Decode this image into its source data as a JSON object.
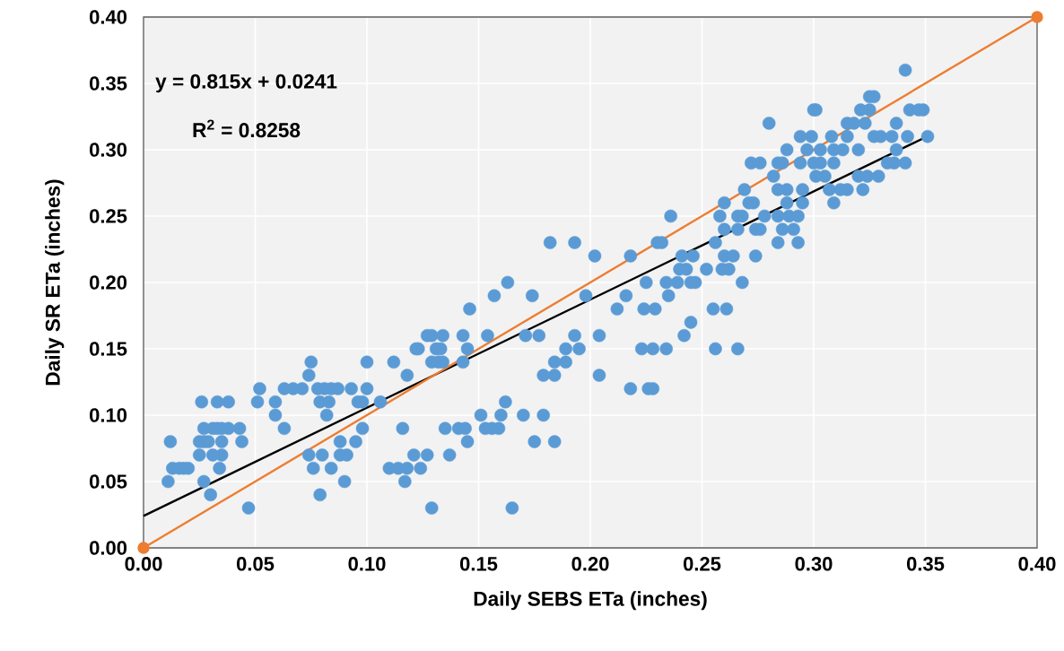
{
  "chart_data": {
    "type": "scatter",
    "xlabel": "Daily SEBS ETa (inches)",
    "ylabel": "Daily SR ETa (inches)",
    "annotations": [
      "y = 0.815x + 0.0241",
      "R$^{2}$ = 0.8258"
    ],
    "xlim": [
      0,
      0.4
    ],
    "ylim": [
      0,
      0.4
    ],
    "xticks": [
      {
        "value": 0,
        "label": "0.00"
      },
      0.05,
      {
        "value": 0.1,
        "label": "0.10"
      },
      0.15,
      {
        "value": 0.2,
        "label": "0.20"
      },
      0.25,
      {
        "value": 0.3,
        "label": "0.30"
      },
      0.35,
      {
        "value": 0.4,
        "label": "0.40"
      }
    ],
    "yticks": [
      {
        "value": 0,
        "label": "0.00"
      },
      0.05,
      {
        "value": 0.1,
        "label": "0.10"
      },
      0.15,
      {
        "value": 0.2,
        "label": "0.20"
      },
      0.25,
      {
        "value": 0.3,
        "label": "0.30"
      },
      0.35,
      {
        "value": 0.4,
        "label": "0.40"
      }
    ],
    "grid": true,
    "series": [
      {
        "marker": "circle",
        "color": "#5b9bd5",
        "x": [
          0.011,
          0.012,
          0.013,
          0.016,
          0.018,
          0.02,
          0.025,
          0.027,
          0.029,
          0.025,
          0.031,
          0.035,
          0.027,
          0.031,
          0.033,
          0.035,
          0.038,
          0.043,
          0.026,
          0.033,
          0.038,
          0.035,
          0.044,
          0.034,
          0.027,
          0.03,
          0.047,
          0.051,
          0.052,
          0.059,
          0.059,
          0.063,
          0.063,
          0.067,
          0.071,
          0.074,
          0.075,
          0.078,
          0.081,
          0.084,
          0.087,
          0.079,
          0.083,
          0.082,
          0.074,
          0.08,
          0.076,
          0.084,
          0.088,
          0.095,
          0.088,
          0.091,
          0.09,
          0.079,
          0.093,
          0.1,
          0.096,
          0.098,
          0.1,
          0.098,
          0.106,
          0.112,
          0.118,
          0.116,
          0.11,
          0.114,
          0.118,
          0.124,
          0.117,
          0.121,
          0.127,
          0.129,
          0.123,
          0.129,
          0.132,
          0.131,
          0.182,
          0.193,
          0.202,
          0.218,
          0.23,
          0.232,
          0.241,
          0.163,
          0.157,
          0.174,
          0.146,
          0.127,
          0.129,
          0.134,
          0.143,
          0.154,
          0.122,
          0.133,
          0.145,
          0.134,
          0.143,
          0.171,
          0.177,
          0.193,
          0.204,
          0.189,
          0.195,
          0.184,
          0.189,
          0.179,
          0.184,
          0.204,
          0.198,
          0.212,
          0.216,
          0.224,
          0.229,
          0.225,
          0.234,
          0.239,
          0.245,
          0.247,
          0.235,
          0.24,
          0.243,
          0.242,
          0.245,
          0.223,
          0.228,
          0.234,
          0.218,
          0.226,
          0.228,
          0.135,
          0.141,
          0.144,
          0.145,
          0.151,
          0.16,
          0.162,
          0.153,
          0.156,
          0.159,
          0.17,
          0.179,
          0.175,
          0.184,
          0.137,
          0.165,
          0.236,
          0.258,
          0.266,
          0.268,
          0.26,
          0.271,
          0.273,
          0.269,
          0.272,
          0.276,
          0.282,
          0.284,
          0.286,
          0.288,
          0.294,
          0.26,
          0.266,
          0.256,
          0.26,
          0.264,
          0.246,
          0.259,
          0.262,
          0.252,
          0.268,
          0.274,
          0.255,
          0.261,
          0.256,
          0.266,
          0.274,
          0.276,
          0.278,
          0.284,
          0.289,
          0.293,
          0.286,
          0.291,
          0.284,
          0.293,
          0.284,
          0.288,
          0.295,
          0.288,
          0.295,
          0.294,
          0.3,
          0.303,
          0.309,
          0.301,
          0.305,
          0.307,
          0.312,
          0.315,
          0.309,
          0.297,
          0.303,
          0.309,
          0.313,
          0.32,
          0.32,
          0.324,
          0.329,
          0.322,
          0.327,
          0.335,
          0.333,
          0.336,
          0.337,
          0.28,
          0.299,
          0.308,
          0.315,
          0.3,
          0.301,
          0.315,
          0.318,
          0.341,
          0.325,
          0.327,
          0.321,
          0.325,
          0.343,
          0.347,
          0.349,
          0.323,
          0.337,
          0.33,
          0.342,
          0.351,
          0.341
        ],
        "values": [
          0.05,
          0.08,
          0.06,
          0.06,
          0.06,
          0.06,
          0.08,
          0.08,
          0.08,
          0.07,
          0.07,
          0.07,
          0.09,
          0.09,
          0.09,
          0.09,
          0.09,
          0.09,
          0.11,
          0.11,
          0.11,
          0.08,
          0.08,
          0.06,
          0.05,
          0.04,
          0.03,
          0.11,
          0.12,
          0.1,
          0.11,
          0.09,
          0.12,
          0.12,
          0.12,
          0.13,
          0.14,
          0.12,
          0.12,
          0.12,
          0.12,
          0.11,
          0.11,
          0.1,
          0.07,
          0.07,
          0.06,
          0.06,
          0.08,
          0.08,
          0.07,
          0.07,
          0.05,
          0.04,
          0.12,
          0.12,
          0.11,
          0.11,
          0.14,
          0.09,
          0.11,
          0.14,
          0.13,
          0.09,
          0.06,
          0.06,
          0.06,
          0.06,
          0.05,
          0.07,
          0.07,
          0.03,
          0.15,
          0.14,
          0.14,
          0.15,
          0.23,
          0.23,
          0.22,
          0.22,
          0.23,
          0.23,
          0.22,
          0.2,
          0.19,
          0.19,
          0.18,
          0.16,
          0.16,
          0.16,
          0.16,
          0.16,
          0.15,
          0.15,
          0.15,
          0.14,
          0.14,
          0.16,
          0.16,
          0.16,
          0.16,
          0.15,
          0.15,
          0.14,
          0.14,
          0.13,
          0.13,
          0.13,
          0.19,
          0.18,
          0.19,
          0.18,
          0.18,
          0.2,
          0.2,
          0.2,
          0.2,
          0.2,
          0.19,
          0.21,
          0.21,
          0.16,
          0.17,
          0.15,
          0.15,
          0.15,
          0.12,
          0.12,
          0.12,
          0.09,
          0.09,
          0.09,
          0.08,
          0.1,
          0.1,
          0.11,
          0.09,
          0.09,
          0.09,
          0.1,
          0.1,
          0.08,
          0.08,
          0.07,
          0.03,
          0.25,
          0.25,
          0.25,
          0.25,
          0.26,
          0.26,
          0.26,
          0.27,
          0.29,
          0.29,
          0.28,
          0.29,
          0.29,
          0.3,
          0.31,
          0.24,
          0.24,
          0.23,
          0.22,
          0.22,
          0.22,
          0.21,
          0.21,
          0.21,
          0.2,
          0.22,
          0.18,
          0.18,
          0.15,
          0.15,
          0.24,
          0.24,
          0.25,
          0.25,
          0.25,
          0.25,
          0.24,
          0.24,
          0.23,
          0.23,
          0.27,
          0.27,
          0.27,
          0.26,
          0.26,
          0.29,
          0.29,
          0.29,
          0.29,
          0.28,
          0.28,
          0.27,
          0.27,
          0.27,
          0.26,
          0.3,
          0.3,
          0.3,
          0.3,
          0.3,
          0.28,
          0.28,
          0.28,
          0.27,
          0.31,
          0.31,
          0.29,
          0.29,
          0.3,
          0.32,
          0.31,
          0.31,
          0.31,
          0.33,
          0.33,
          0.32,
          0.32,
          0.36,
          0.34,
          0.34,
          0.33,
          0.33,
          0.33,
          0.33,
          0.33,
          0.32,
          0.32,
          0.31,
          0.31,
          0.31,
          0.29
        ]
      },
      {
        "type": "line",
        "marker": "none",
        "color": "#000000",
        "x": [
          0,
          0.352
        ],
        "values": [
          0.0241,
          0.311
        ]
      },
      {
        "type": "line",
        "marker": "circle",
        "color": "#ed7d31",
        "x": [
          0,
          0.4
        ],
        "values": [
          0,
          0.4
        ]
      }
    ]
  }
}
